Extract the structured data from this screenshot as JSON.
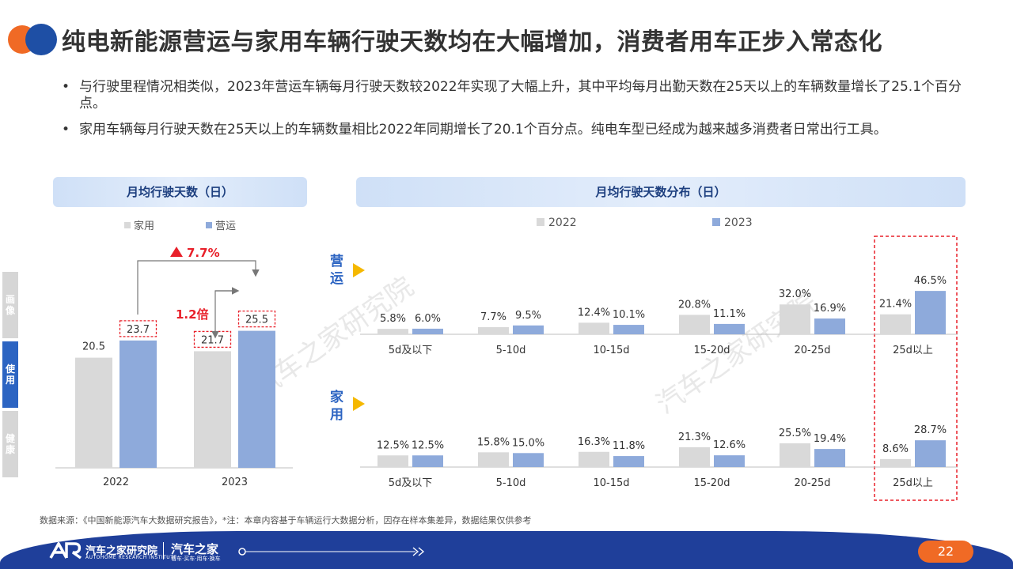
{
  "title": "纯电新能源营运与家用车辆行驶天数均在大幅增加，消费者用车正步入常态化",
  "bullets": [
    "与行驶里程情况相类似，2023年营运车辆每月行驶天数较2022年实现了大幅上升，其中平均每月出勤天数在25天以上的车辆数量增长了25.1个百分点。",
    "家用车辆每月行驶天数在25天以上的车辆数量相比2022年同期增长了20.1个百分点。纯电车型已经成为越来越多消费者日常出行工具。"
  ],
  "sidebar": {
    "item1": "画像",
    "item2": "使用",
    "item3": "健康"
  },
  "colors": {
    "y2022": "#d9d9d9",
    "y2023": "#8eaadb",
    "accent": "#e8202a",
    "blue": "#2c64c2",
    "orange": "#f06a25"
  },
  "chart_data": [
    {
      "type": "bar",
      "title": "月均行驶天数（日）",
      "categories": [
        "2022",
        "2023"
      ],
      "series": [
        {
          "name": "家用",
          "values": [
            20.5,
            21.7
          ]
        },
        {
          "name": "营运",
          "values": [
            23.7,
            25.5
          ]
        }
      ],
      "value_labels": [
        "20.5",
        "23.7",
        "21.7",
        "25.5"
      ],
      "annotations": {
        "growth": "7.7%",
        "ratio": "1.2倍"
      },
      "legend": "top"
    },
    {
      "type": "bar",
      "title": "月均行驶天数分布（日）",
      "legend_labels": [
        "2022",
        "2023"
      ],
      "categories": [
        "5d及以下",
        "5-10d",
        "10-15d",
        "15-20d",
        "20-25d",
        "25d以上"
      ],
      "panels": [
        {
          "name": "营运",
          "series": [
            {
              "name": "2022",
              "values": [
                5.8,
                7.7,
                12.4,
                20.8,
                32.0,
                21.4
              ],
              "labels": [
                "5.8%",
                "7.7%",
                "12.4%",
                "20.8%",
                "32.0%",
                "21.4%"
              ]
            },
            {
              "name": "2023",
              "values": [
                6.0,
                9.5,
                10.1,
                11.1,
                16.9,
                46.5
              ],
              "labels": [
                "6.0%",
                "9.5%",
                "10.1%",
                "11.1%",
                "16.9%",
                "46.5%"
              ]
            }
          ]
        },
        {
          "name": "家用",
          "series": [
            {
              "name": "2022",
              "values": [
                12.5,
                15.8,
                16.3,
                21.3,
                25.5,
                8.6
              ],
              "labels": [
                "12.5%",
                "15.8%",
                "16.3%",
                "21.3%",
                "25.5%",
                "8.6%"
              ]
            },
            {
              "name": "2023",
              "values": [
                12.5,
                15.0,
                11.8,
                12.6,
                19.4,
                28.7
              ],
              "labels": [
                "12.5%",
                "15.0%",
                "11.8%",
                "12.6%",
                "19.4%",
                "28.7%"
              ]
            }
          ]
        }
      ],
      "legend": "top"
    }
  ],
  "source": "数据来源：《中国新能源汽车大数据研究报告》，*注：本章内容基于车辆运行大数据分析，因存在样本集差异，数据结果仅供参考",
  "footer": {
    "brand1": "汽车之家研究院",
    "brand1_sub": "AUTOHOME RESEARCH INSTITUTE",
    "brand2": "汽车之家",
    "brand2_sub": "看车·买车·用车·换车",
    "page": "22"
  },
  "watermark": "汽车之家研究院"
}
